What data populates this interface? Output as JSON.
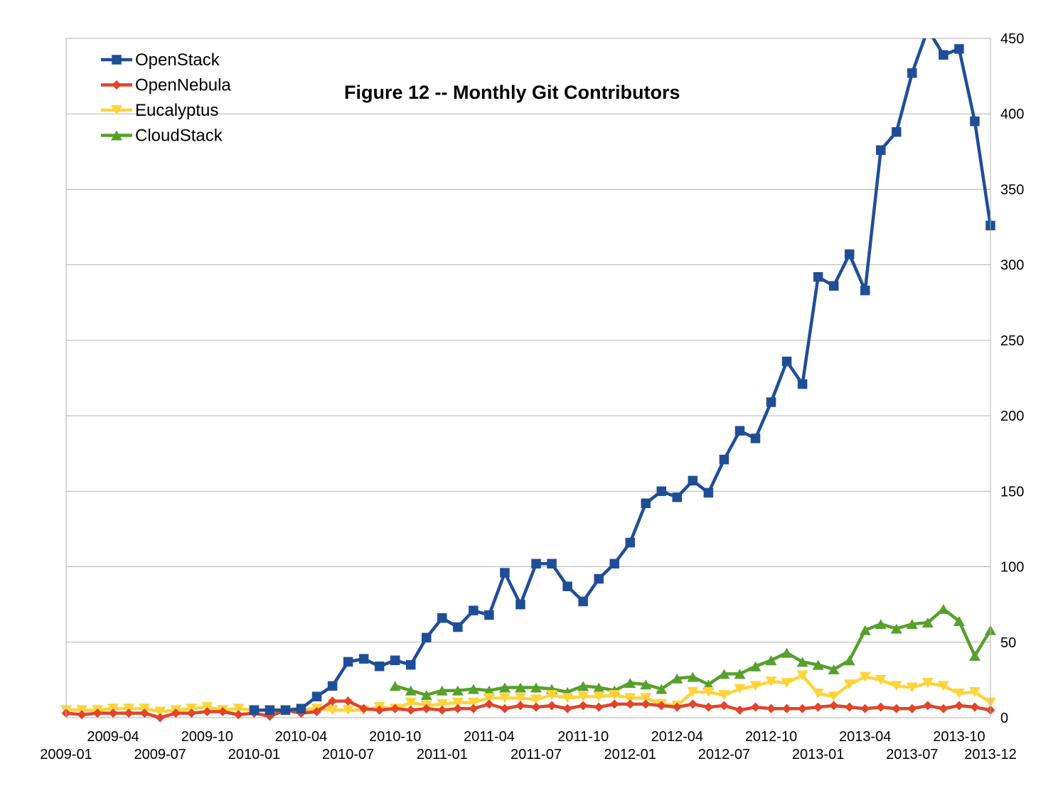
{
  "chart_data": {
    "type": "line",
    "title": "Figure 12 -- Monthly Git Contributors",
    "xlabel": "",
    "ylabel": "",
    "ylim": [
      0,
      450
    ],
    "y_ticks": [
      0,
      50,
      100,
      150,
      200,
      250,
      300,
      350,
      400,
      450
    ],
    "y_axis_side": "right",
    "grid": true,
    "legend_position": "top-left",
    "x_tick_labels_upper": [
      "2009-04",
      "2009-10",
      "2010-04",
      "2010-10",
      "2011-04",
      "2011-10",
      "2012-04",
      "2012-10",
      "2013-04",
      "2013-10"
    ],
    "x_tick_labels_lower": [
      "2009-01",
      "2009-07",
      "2010-01",
      "2010-07",
      "2011-01",
      "2011-07",
      "2012-01",
      "2012-07",
      "2013-01",
      "2013-07",
      "2013-12"
    ],
    "x": [
      "2009-01",
      "2009-02",
      "2009-03",
      "2009-04",
      "2009-05",
      "2009-06",
      "2009-07",
      "2009-08",
      "2009-09",
      "2009-10",
      "2009-11",
      "2009-12",
      "2010-01",
      "2010-02",
      "2010-03",
      "2010-04",
      "2010-05",
      "2010-06",
      "2010-07",
      "2010-08",
      "2010-09",
      "2010-10",
      "2010-11",
      "2010-12",
      "2011-01",
      "2011-02",
      "2011-03",
      "2011-04",
      "2011-05",
      "2011-06",
      "2011-07",
      "2011-08",
      "2011-09",
      "2011-10",
      "2011-11",
      "2011-12",
      "2012-01",
      "2012-02",
      "2012-03",
      "2012-04",
      "2012-05",
      "2012-06",
      "2012-07",
      "2012-08",
      "2012-09",
      "2012-10",
      "2012-11",
      "2012-12",
      "2013-01",
      "2013-02",
      "2013-03",
      "2013-04",
      "2013-05",
      "2013-06",
      "2013-07",
      "2013-08",
      "2013-09",
      "2013-10",
      "2013-11",
      "2013-12"
    ],
    "series": [
      {
        "name": "OpenStack",
        "color": "#1f4e97",
        "marker": "square",
        "values": [
          null,
          null,
          null,
          null,
          null,
          null,
          null,
          null,
          null,
          null,
          null,
          null,
          5,
          5,
          5,
          6,
          14,
          21,
          37,
          39,
          34,
          38,
          35,
          53,
          66,
          60,
          71,
          68,
          96,
          75,
          102,
          102,
          87,
          77,
          92,
          102,
          116,
          142,
          150,
          146,
          157,
          149,
          171,
          190,
          185,
          209,
          236,
          221,
          292,
          286,
          307,
          283,
          376,
          388,
          427,
          456,
          439,
          443,
          395,
          326
        ]
      },
      {
        "name": "OpenNebula",
        "color": "#e2442a",
        "marker": "diamond",
        "values": [
          3,
          2,
          3,
          3,
          3,
          3,
          0,
          3,
          3,
          4,
          4,
          2,
          3,
          1,
          5,
          3,
          4,
          11,
          11,
          6,
          5,
          6,
          5,
          6,
          5,
          6,
          6,
          9,
          6,
          8,
          7,
          8,
          6,
          8,
          7,
          9,
          9,
          9,
          8,
          7,
          9,
          7,
          8,
          5,
          7,
          6,
          6,
          6,
          7,
          8,
          7,
          6,
          7,
          6,
          6,
          8,
          6,
          8,
          7,
          5
        ]
      },
      {
        "name": "Eucalyptus",
        "color": "#ffd43a",
        "marker": "triangle-down",
        "values": [
          5,
          5,
          5,
          6,
          6,
          6,
          4,
          5,
          6,
          7,
          5,
          6,
          5,
          5,
          5,
          5,
          6,
          5,
          5,
          5,
          7,
          6,
          10,
          8,
          9,
          10,
          10,
          13,
          13,
          13,
          12,
          15,
          13,
          14,
          14,
          15,
          13,
          13,
          9,
          8,
          17,
          17,
          15,
          19,
          21,
          24,
          23,
          28,
          16,
          14,
          22,
          27,
          25,
          21,
          20,
          23,
          21,
          16,
          17,
          10
        ]
      },
      {
        "name": "CloudStack",
        "color": "#57a02b",
        "marker": "triangle-up",
        "values": [
          null,
          null,
          null,
          null,
          null,
          null,
          null,
          null,
          null,
          null,
          null,
          null,
          null,
          null,
          null,
          null,
          null,
          null,
          null,
          null,
          null,
          21,
          18,
          15,
          18,
          18,
          19,
          18,
          20,
          20,
          20,
          19,
          17,
          21,
          20,
          18,
          23,
          22,
          19,
          26,
          27,
          22,
          29,
          29,
          34,
          38,
          43,
          37,
          35,
          32,
          38,
          58,
          62,
          59,
          62,
          63,
          72,
          64,
          41,
          58
        ]
      }
    ]
  }
}
